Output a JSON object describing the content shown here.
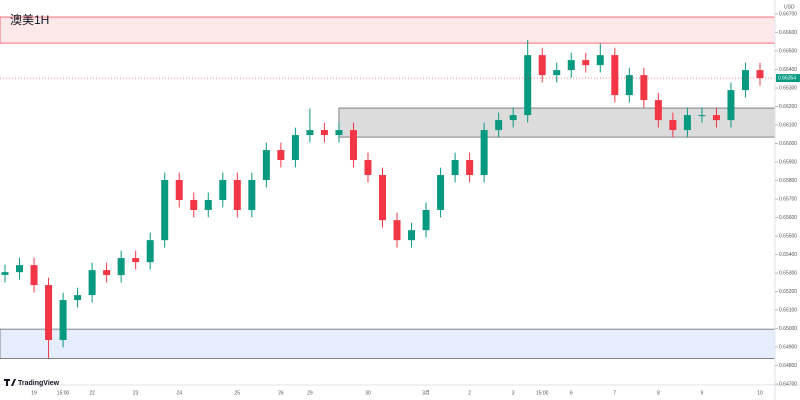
{
  "chart_data": {
    "type": "candlestick",
    "title": "澳美1H",
    "brand": "TradingView",
    "currency": "USD",
    "last_label": "0.66354",
    "up_color": "#089981",
    "down_color": "#f23645",
    "categories": [
      null,
      null,
      "19",
      null,
      "15:00",
      null,
      "22",
      null,
      null,
      "23",
      null,
      null,
      "24",
      null,
      null,
      null,
      "25",
      null,
      null,
      "26",
      null,
      "29",
      null,
      null,
      null,
      "30",
      null,
      null,
      null,
      "3月",
      null,
      null,
      "2",
      null,
      null,
      "3",
      null,
      "15:00",
      null,
      "6",
      null,
      null,
      "7",
      null,
      null,
      "8",
      null,
      null,
      "9",
      null,
      null,
      null,
      "10"
    ],
    "open": [
      0.6529,
      0.65305,
      0.65343,
      0.65235,
      0.64938,
      0.65154,
      0.65181,
      0.65316,
      0.65289,
      0.65381,
      0.65359,
      0.65478,
      0.65803,
      0.65695,
      0.65641,
      0.65695,
      0.65803,
      0.65641,
      0.65803,
      0.65965,
      0.65911,
      0.66046,
      0.66073,
      0.66046,
      0.66073,
      0.65911,
      0.6583,
      0.65586,
      0.65478,
      0.65532,
      0.65641,
      0.6583,
      0.65911,
      0.6583,
      0.66073,
      0.66127,
      0.66154,
      0.66478,
      0.6637,
      0.66397,
      0.66451,
      0.66424,
      0.66478,
      0.66262,
      0.6637,
      0.66235,
      0.66127,
      0.66073,
      0.66154,
      0.66154,
      0.66127,
      0.66289,
      0.66397
    ],
    "high": [
      0.65345,
      0.65383,
      0.65383,
      0.65275,
      0.65194,
      0.65221,
      0.65356,
      0.65356,
      0.65421,
      0.65421,
      0.65518,
      0.65843,
      0.65843,
      0.65735,
      0.65735,
      0.65843,
      0.65843,
      0.65843,
      0.66005,
      0.66005,
      0.66086,
      0.6619,
      0.66113,
      0.66113,
      0.66113,
      0.65951,
      0.6587,
      0.65626,
      0.65572,
      0.65681,
      0.6587,
      0.65951,
      0.65951,
      0.66113,
      0.66167,
      0.66194,
      0.6656,
      0.66518,
      0.66437,
      0.66491,
      0.66491,
      0.6654,
      0.66518,
      0.6641,
      0.6641,
      0.66275,
      0.66167,
      0.66194,
      0.66194,
      0.66194,
      0.66329,
      0.66437,
      0.66437
    ],
    "low": [
      0.6525,
      0.65265,
      0.65195,
      0.6484,
      0.64898,
      0.65114,
      0.65141,
      0.65249,
      0.65249,
      0.65319,
      0.65319,
      0.65438,
      0.65655,
      0.65601,
      0.65601,
      0.65655,
      0.65601,
      0.65601,
      0.65763,
      0.65871,
      0.65871,
      0.66006,
      0.66006,
      0.66006,
      0.65871,
      0.6579,
      0.65546,
      0.65438,
      0.65438,
      0.65492,
      0.65601,
      0.6579,
      0.6579,
      0.6579,
      0.66033,
      0.66087,
      0.66114,
      0.6633,
      0.6633,
      0.66357,
      0.66384,
      0.66384,
      0.66222,
      0.66222,
      0.66195,
      0.66087,
      0.66033,
      0.66033,
      0.66114,
      0.66087,
      0.66087,
      0.66249,
      0.66314
    ],
    "close": [
      0.65305,
      0.65343,
      0.65235,
      0.64938,
      0.65154,
      0.65181,
      0.65316,
      0.65289,
      0.65381,
      0.65359,
      0.65478,
      0.65803,
      0.65695,
      0.65641,
      0.65695,
      0.65803,
      0.65641,
      0.65803,
      0.65965,
      0.65911,
      0.66046,
      0.66073,
      0.66046,
      0.66073,
      0.65911,
      0.6583,
      0.65586,
      0.65478,
      0.65532,
      0.65641,
      0.6583,
      0.65911,
      0.6583,
      0.66073,
      0.66127,
      0.66154,
      0.66478,
      0.6637,
      0.66397,
      0.66451,
      0.66424,
      0.66478,
      0.66262,
      0.6637,
      0.66235,
      0.66127,
      0.66073,
      0.66154,
      0.66154,
      0.66127,
      0.66289,
      0.66397,
      0.66354
    ],
    "zones": [
      {
        "low": 0.66543,
        "high": 0.66684,
        "color": "#fde8ea",
        "border": "#f23645"
      },
      {
        "low": 0.66035,
        "high": 0.66192,
        "start": 23,
        "color": "#dcdcdc",
        "border": "#555555"
      },
      {
        "low": 0.64838,
        "high": 0.64997,
        "color": "#e6edfd",
        "border": "#555555"
      }
    ],
    "ylim": [
      0.64695,
      0.66776
    ],
    "yticks": [
      {
        "value": 0.667,
        "label": "0.66700"
      },
      {
        "value": 0.666,
        "label": "0.66600"
      },
      {
        "value": 0.665,
        "label": "0.66500"
      },
      {
        "value": 0.664,
        "label": "0.66400"
      },
      {
        "value": 0.663,
        "label": "0.66300"
      },
      {
        "value": 0.662,
        "label": "0.66200"
      },
      {
        "value": 0.661,
        "label": "0.66100"
      },
      {
        "value": 0.66,
        "label": "0.66000"
      },
      {
        "value": 0.659,
        "label": "0.65900"
      },
      {
        "value": 0.658,
        "label": "0.65800"
      },
      {
        "value": 0.657,
        "label": "0.65700"
      },
      {
        "value": 0.656,
        "label": "0.65600"
      },
      {
        "value": 0.655,
        "label": "0.65500"
      },
      {
        "value": 0.654,
        "label": "0.65400"
      },
      {
        "value": 0.653,
        "label": "0.65300"
      },
      {
        "value": 0.652,
        "label": "0.65200"
      },
      {
        "value": 0.651,
        "label": "0.65100"
      },
      {
        "value": 0.65,
        "label": "0.65000"
      },
      {
        "value": 0.649,
        "label": "0.64900"
      },
      {
        "value": 0.648,
        "label": "0.64800"
      },
      {
        "value": 0.647,
        "label": "0.64700"
      }
    ]
  }
}
